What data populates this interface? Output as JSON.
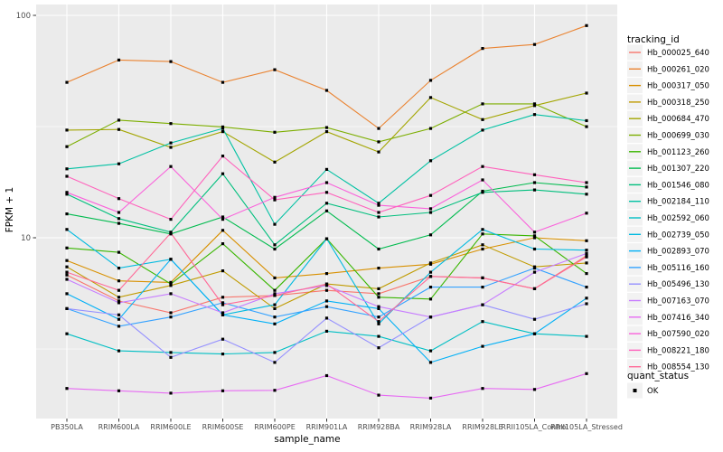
{
  "chart_data": {
    "type": "line",
    "title": "",
    "xlabel": "sample_name",
    "ylabel": "FPKM + 1",
    "y_scale": "log10",
    "ylim": [
      1.5,
      112
    ],
    "y_ticks": [
      {
        "label": "100",
        "value": 100
      },
      {
        "label": "10",
        "value": 10
      }
    ],
    "y_minor_gridlines": [
      31.6,
      3.16
    ],
    "grid": "on",
    "panel_bg_color": "#EBEBEB",
    "grid_color": "#FFFFFF",
    "tick_text_color": "#4D4D4D",
    "marker": {
      "shape": "square",
      "color": "#000000",
      "size": 3.2
    },
    "categories": [
      "PB350LA",
      "RRIM600LA",
      "RRIM600LE",
      "RRIM600SE",
      "RRIM600PE",
      "RRIM901LA",
      "RRIM928BA",
      "RRIM928LA",
      "RRIM928LE",
      "RRII105LA_Control",
      "RRII105LA_Stressed"
    ],
    "legend": {
      "title": "tracking_id",
      "position": "right"
    },
    "legend2": {
      "title": "quant_status",
      "items": [
        {
          "label": "OK",
          "marker": "black-square"
        }
      ]
    },
    "series": [
      {
        "name": "Hb_000025_640",
        "color": "#F8766D",
        "values": [
          6.8,
          5.2,
          4.6,
          5.4,
          5.5,
          5.8,
          5.6,
          6.7,
          6.6,
          5.9,
          8.3
        ]
      },
      {
        "name": "Hb_000261_020",
        "color": "#EA8331",
        "values": [
          50,
          63,
          62,
          50,
          57,
          46,
          31,
          51,
          71,
          74,
          90
        ]
      },
      {
        "name": "Hb_000317_050",
        "color": "#D89000",
        "values": [
          7.9,
          6.4,
          6.3,
          10.8,
          6.6,
          6.9,
          7.3,
          7.6,
          8.9,
          10.0,
          9.7
        ]
      },
      {
        "name": "Hb_000318_250",
        "color": "#C09B00",
        "values": [
          7.4,
          5.4,
          6.1,
          7.1,
          4.8,
          6.2,
          5.9,
          7.7,
          9.3,
          7.4,
          7.7
        ]
      },
      {
        "name": "Hb_000684_470",
        "color": "#A3A500",
        "values": [
          30.5,
          30.7,
          25.5,
          30.0,
          21.9,
          30.0,
          24.3,
          42.7,
          34.0,
          39.3,
          44.7
        ]
      },
      {
        "name": "Hb_000699_030",
        "color": "#7CAE00",
        "values": [
          25.7,
          33.8,
          32.6,
          31.5,
          29.8,
          31.3,
          27.0,
          31.0,
          40.0,
          40.0,
          31.6
        ]
      },
      {
        "name": "Hb_001123_260",
        "color": "#39B600",
        "values": [
          9.0,
          8.6,
          6.2,
          9.4,
          5.8,
          9.9,
          5.4,
          5.3,
          10.4,
          10.2,
          6.9
        ]
      },
      {
        "name": "Hb_001307_220",
        "color": "#00BB4E",
        "values": [
          12.8,
          11.6,
          10.4,
          12.4,
          8.9,
          13.2,
          8.9,
          10.3,
          16.2,
          17.7,
          16.9
        ]
      },
      {
        "name": "Hb_001546_080",
        "color": "#00BF7D",
        "values": [
          15.7,
          12.2,
          10.6,
          19.4,
          9.3,
          14.3,
          12.4,
          13.0,
          16.0,
          16.4,
          15.7
        ]
      },
      {
        "name": "Hb_002184_110",
        "color": "#00C1A3",
        "values": [
          20.4,
          21.5,
          26.7,
          31.0,
          11.5,
          20.3,
          14.3,
          22.2,
          30.5,
          35.8,
          33.6
        ]
      },
      {
        "name": "Hb_002592_060",
        "color": "#00BFC4",
        "values": [
          3.7,
          3.1,
          3.05,
          3.0,
          3.05,
          3.8,
          3.6,
          3.1,
          4.2,
          3.7,
          3.6
        ]
      },
      {
        "name": "Hb_002739_050",
        "color": "#00BAE0",
        "values": [
          10.9,
          7.3,
          8.0,
          4.5,
          5.0,
          9.9,
          4.1,
          7.0,
          10.9,
          8.9,
          8.8
        ]
      },
      {
        "name": "Hb_002893_070",
        "color": "#00B0F6",
        "values": [
          5.6,
          4.3,
          8.0,
          4.5,
          4.1,
          5.2,
          4.8,
          2.75,
          3.25,
          3.7,
          5.35
        ]
      },
      {
        "name": "Hb_005116_160",
        "color": "#35A2FF",
        "values": [
          4.8,
          4.0,
          4.4,
          5.1,
          4.4,
          4.9,
          4.4,
          6.0,
          6.0,
          7.3,
          6.0
        ]
      },
      {
        "name": "Hb_005496_130",
        "color": "#9590FF",
        "values": [
          4.8,
          4.5,
          2.9,
          3.5,
          2.75,
          4.35,
          3.2,
          4.4,
          5.0,
          4.3,
          5.05
        ]
      },
      {
        "name": "Hb_007163_070",
        "color": "#C77CFF",
        "values": [
          6.5,
          5.1,
          5.6,
          4.6,
          5.6,
          6.1,
          4.9,
          4.4,
          5.0,
          7.0,
          8.5
        ]
      },
      {
        "name": "Hb_007416_340",
        "color": "#E76BF3",
        "values": [
          2.1,
          2.05,
          2.0,
          2.05,
          2.06,
          2.4,
          1.96,
          1.9,
          2.1,
          2.08,
          2.45
        ]
      },
      {
        "name": "Hb_007590_020",
        "color": "#FA62DB",
        "values": [
          16.0,
          13.0,
          20.9,
          12.1,
          15.2,
          17.7,
          14.0,
          13.5,
          18.2,
          10.6,
          12.9
        ]
      },
      {
        "name": "Hb_008221_180",
        "color": "#FF62BC",
        "values": [
          18.9,
          15.0,
          12.1,
          23.3,
          14.8,
          16.0,
          13.0,
          15.5,
          20.9,
          19.2,
          17.7
        ]
      },
      {
        "name": "Hb_008554_130",
        "color": "#FF6A98",
        "values": [
          7.0,
          5.8,
          10.5,
          5.0,
          5.5,
          6.2,
          4.2,
          6.7,
          6.6,
          5.9,
          8.2
        ]
      }
    ]
  }
}
